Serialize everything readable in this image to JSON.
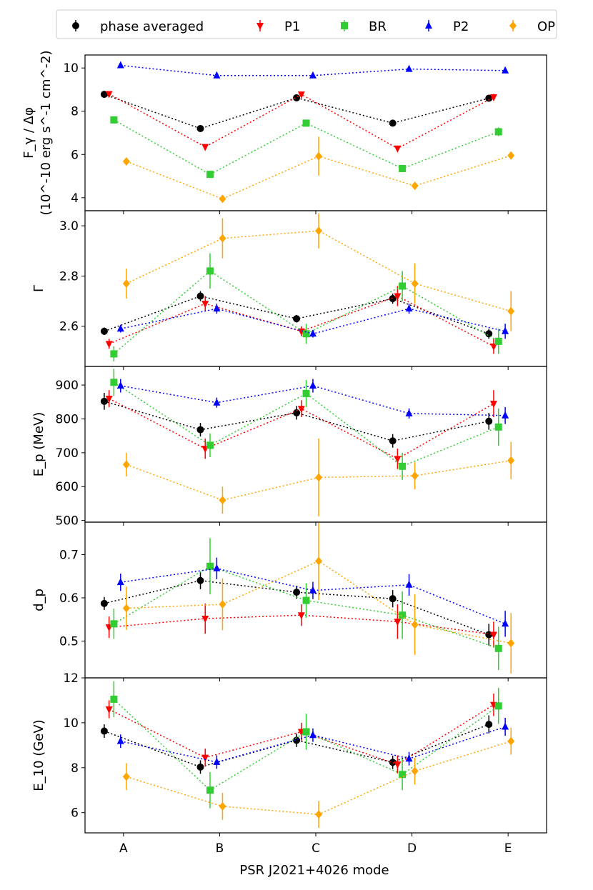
{
  "chart_data": {
    "type": "scatter",
    "xlabel": "PSR J2021+4026 mode",
    "categories": [
      "A",
      "B",
      "C",
      "D",
      "E"
    ],
    "legend": {
      "position": "top",
      "entries": [
        {
          "label": "phase averaged",
          "color": "#000000",
          "marker": "circle"
        },
        {
          "label": "P1",
          "color": "#ff0000",
          "marker": "triangle-down"
        },
        {
          "label": "BR",
          "color": "#32cd32",
          "marker": "square"
        },
        {
          "label": "P2",
          "color": "#0000ff",
          "marker": "triangle-up"
        },
        {
          "label": "OP",
          "color": "#ffa500",
          "marker": "diamond"
        }
      ]
    },
    "series_offsets": [
      -0.2,
      -0.15,
      -0.1,
      -0.03,
      0.03
    ],
    "panels": [
      {
        "ylabel": "F_γ / Δφ",
        "ylabel2": "(10^-10 erg s^-1 cm^-2)",
        "ylim": [
          3.4,
          10.6
        ],
        "yticks": [
          "4",
          "6",
          "8",
          "10"
        ],
        "series": [
          {
            "name": "phase averaged",
            "values": [
              8.78,
              7.2,
              8.62,
              7.45,
              8.6
            ],
            "errors": [
              0.1,
              0.1,
              0.1,
              0.1,
              0.1
            ]
          },
          {
            "name": "P1",
            "values": [
              8.8,
              6.35,
              8.78,
              6.28,
              8.65
            ],
            "errors": [
              0.12,
              0.12,
              0.12,
              0.12,
              0.15
            ]
          },
          {
            "name": "BR",
            "values": [
              7.6,
              5.08,
              7.45,
              5.35,
              7.05
            ],
            "errors": [
              0.15,
              0.12,
              0.15,
              0.15,
              0.2
            ]
          },
          {
            "name": "P2",
            "values": [
              10.12,
              9.65,
              9.65,
              9.95,
              9.88
            ],
            "errors": [
              0.1,
              0.1,
              0.1,
              0.1,
              0.12
            ]
          },
          {
            "name": "OP",
            "values": [
              5.68,
              3.95,
              5.92,
              4.55,
              5.95
            ],
            "errors": [
              0.1,
              0.12,
              0.9,
              0.12,
              0.12
            ]
          }
        ]
      },
      {
        "ylabel": "Γ",
        "ylim": [
          2.44,
          3.06
        ],
        "yticks": [
          "2.6",
          "2.8",
          "3.0"
        ],
        "series": [
          {
            "name": "phase averaged",
            "values": [
              2.58,
              2.72,
              2.63,
              2.71,
              2.57
            ],
            "errors": [
              0.015,
              0.02,
              0.015,
              0.02,
              0.02
            ]
          },
          {
            "name": "P1",
            "values": [
              2.53,
              2.69,
              2.58,
              2.72,
              2.52
            ],
            "errors": [
              0.02,
              0.03,
              0.02,
              0.04,
              0.03
            ]
          },
          {
            "name": "BR",
            "values": [
              2.49,
              2.82,
              2.57,
              2.76,
              2.54
            ],
            "errors": [
              0.03,
              0.07,
              0.04,
              0.06,
              0.05
            ]
          },
          {
            "name": "P2",
            "values": [
              2.59,
              2.67,
              2.57,
              2.67,
              2.58
            ],
            "errors": [
              0.015,
              0.02,
              0.015,
              0.02,
              0.03
            ]
          },
          {
            "name": "OP",
            "values": [
              2.77,
              2.95,
              2.98,
              2.77,
              2.66
            ],
            "errors": [
              0.06,
              0.08,
              0.07,
              0.08,
              0.08
            ]
          }
        ]
      },
      {
        "ylabel": "E_p (MeV)",
        "ylim": [
          495,
          955
        ],
        "yticks": [
          "500",
          "600",
          "700",
          "800",
          "900"
        ],
        "series": [
          {
            "name": "phase averaged",
            "values": [
              852,
              768,
              818,
              735,
              793
            ],
            "errors": [
              25,
              20,
              20,
              20,
              25
            ]
          },
          {
            "name": "P1",
            "values": [
              860,
              712,
              830,
              682,
              845
            ],
            "errors": [
              25,
              30,
              25,
              30,
              40
            ]
          },
          {
            "name": "BR",
            "values": [
              908,
              722,
              875,
              660,
              776
            ],
            "errors": [
              40,
              35,
              40,
              40,
              55
            ]
          },
          {
            "name": "P2",
            "values": [
              898,
              848,
              898,
              816,
              810
            ],
            "errors": [
              20,
              15,
              20,
              15,
              25
            ]
          },
          {
            "name": "OP",
            "values": [
              665,
              560,
              627,
              632,
              677
            ],
            "errors": [
              35,
              40,
              115,
              40,
              55
            ]
          }
        ]
      },
      {
        "ylabel": "d_p",
        "ylim": [
          0.415,
          0.775
        ],
        "yticks": [
          "0.5",
          "0.6",
          "0.7"
        ],
        "series": [
          {
            "name": "phase averaged",
            "values": [
              0.587,
              0.64,
              0.613,
              0.598,
              0.515
            ],
            "errors": [
              0.015,
              0.02,
              0.015,
              0.02,
              0.025
            ]
          },
          {
            "name": "P1",
            "values": [
              0.532,
              0.552,
              0.56,
              0.545,
              0.515
            ],
            "errors": [
              0.025,
              0.035,
              0.025,
              0.04,
              0.03
            ]
          },
          {
            "name": "BR",
            "values": [
              0.54,
              0.673,
              0.594,
              0.56,
              0.483
            ],
            "errors": [
              0.035,
              0.065,
              0.04,
              0.055,
              0.05
            ]
          },
          {
            "name": "P2",
            "values": [
              0.636,
              0.668,
              0.617,
              0.63,
              0.54
            ],
            "errors": [
              0.02,
              0.025,
              0.02,
              0.025,
              0.03
            ]
          },
          {
            "name": "OP",
            "values": [
              0.576,
              0.585,
              0.685,
              0.538,
              0.495
            ],
            "errors": [
              0.05,
              0.06,
              0.09,
              0.07,
              0.07
            ]
          }
        ]
      },
      {
        "ylabel": "E_10 (GeV)",
        "ylim": [
          5.1,
          12.0
        ],
        "yticks": [
          "6",
          "8",
          "10",
          "12"
        ],
        "series": [
          {
            "name": "phase averaged",
            "values": [
              9.63,
              8.03,
              9.22,
              8.24,
              9.93
            ],
            "errors": [
              0.3,
              0.3,
              0.3,
              0.3,
              0.4
            ]
          },
          {
            "name": "P1",
            "values": [
              10.6,
              8.45,
              9.6,
              8.15,
              10.8
            ],
            "errors": [
              0.4,
              0.4,
              0.4,
              0.4,
              0.5
            ]
          },
          {
            "name": "BR",
            "values": [
              11.05,
              7.0,
              9.6,
              7.7,
              10.75
            ],
            "errors": [
              0.8,
              0.8,
              0.8,
              0.7,
              0.8
            ]
          },
          {
            "name": "P2",
            "values": [
              9.18,
              8.25,
              9.45,
              8.4,
              9.82
            ],
            "errors": [
              0.3,
              0.3,
              0.3,
              0.3,
              0.4
            ]
          },
          {
            "name": "OP",
            "values": [
              7.6,
              6.28,
              5.92,
              7.85,
              9.18
            ],
            "errors": [
              0.6,
              0.6,
              0.6,
              0.6,
              0.6
            ]
          }
        ]
      }
    ]
  }
}
